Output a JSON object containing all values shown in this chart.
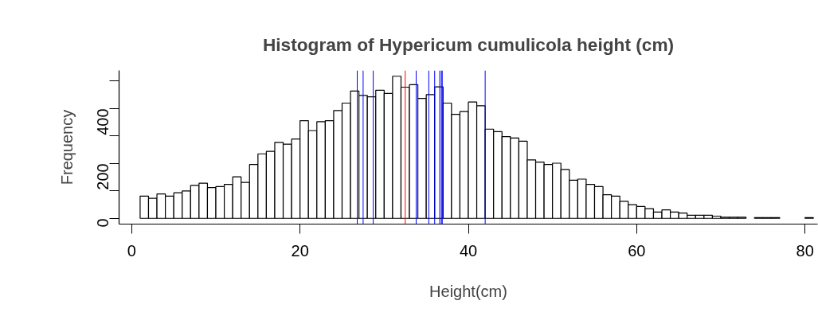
{
  "chart_data": {
    "type": "histogram",
    "title": "Histogram of Hypericum cumulicola height (cm)",
    "xlabel": "Height(cm)",
    "ylabel": "Frequency",
    "bins": [
      1,
      2,
      3,
      4,
      5,
      6,
      7,
      8,
      9,
      10,
      11,
      12,
      13,
      14,
      15,
      16,
      17,
      18,
      19,
      20,
      21,
      22,
      23,
      24,
      25,
      26,
      27,
      28,
      29,
      30,
      31,
      32,
      33,
      34,
      35,
      36,
      37,
      38,
      39,
      40,
      41,
      42,
      43,
      44,
      45,
      46,
      47,
      48,
      49,
      50,
      51,
      52,
      53,
      54,
      55,
      56,
      57,
      58,
      59,
      60,
      61,
      62,
      63,
      64,
      65,
      66,
      67,
      68,
      69,
      70,
      71,
      72,
      73,
      74,
      75,
      76,
      77,
      78,
      79,
      80,
      81
    ],
    "values": [
      81,
      73,
      89,
      81,
      93,
      100,
      120,
      128,
      112,
      116,
      124,
      151,
      131,
      196,
      235,
      244,
      277,
      270,
      289,
      356,
      320,
      352,
      356,
      393,
      420,
      464,
      448,
      443,
      467,
      455,
      518,
      478,
      487,
      437,
      451,
      479,
      420,
      379,
      389,
      424,
      410,
      325,
      316,
      298,
      293,
      281,
      213,
      205,
      196,
      201,
      178,
      139,
      143,
      124,
      116,
      86,
      81,
      62,
      50,
      43,
      35,
      23,
      31,
      23,
      19,
      11,
      11,
      11,
      8,
      4,
      4,
      4,
      null,
      3,
      3,
      3,
      null,
      null,
      null,
      3
    ],
    "color": "#ffffff",
    "xlim": [
      -1.5,
      81.5
    ],
    "ylim": [
      -21,
      539
    ],
    "xticks": [
      0,
      20,
      40,
      60,
      80
    ],
    "yticks": [
      0,
      {
        "value": 100,
        "label": null
      },
      200,
      {
        "value": 300,
        "label": null
      },
      400,
      {
        "value": 500,
        "label": null
      }
    ],
    "ref_lines": [
      {
        "axis": "x",
        "value": 26.8,
        "label": null,
        "color": "#0000ff"
      },
      {
        "axis": "x",
        "value": 27.5,
        "label": null,
        "color": "#0000ff"
      },
      {
        "axis": "x",
        "value": 28.7,
        "label": null,
        "color": "#0000ff"
      },
      {
        "axis": "x",
        "value": 32.5,
        "label": null,
        "color": "#ff0000"
      },
      {
        "axis": "x",
        "value": 33.8,
        "label": null,
        "color": "#0000ff"
      },
      {
        "axis": "x",
        "value": 35.3,
        "label": null,
        "color": "#0000ff"
      },
      {
        "axis": "x",
        "value": 36.0,
        "label": null,
        "color": "#0000ff"
      },
      {
        "axis": "x",
        "value": 36.6,
        "label": null,
        "color": "#0000ff"
      },
      {
        "axis": "x",
        "value": 36.8,
        "label": null,
        "color": "#0000ff"
      },
      {
        "axis": "x",
        "value": 36.9,
        "label": null,
        "color": "#0000ff"
      },
      {
        "axis": "x",
        "value": 42.0,
        "label": null,
        "color": "#0000ff"
      }
    ],
    "grid": false
  }
}
